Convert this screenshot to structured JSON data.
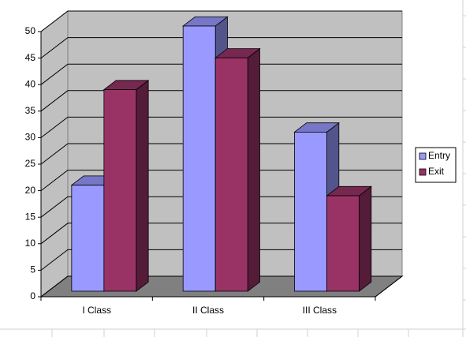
{
  "chart_data": {
    "type": "bar",
    "categories": [
      "I Class",
      "II Class",
      "III Class"
    ],
    "series": [
      {
        "name": "Entry",
        "color": "#9999ff",
        "values": [
          20,
          50,
          30
        ]
      },
      {
        "name": "Exit",
        "color": "#993366",
        "values": [
          38,
          44,
          18
        ]
      }
    ],
    "ylim": [
      0,
      50
    ],
    "yticks": [
      0,
      5,
      10,
      15,
      20,
      25,
      30,
      35,
      40,
      45,
      50
    ],
    "grid": true,
    "legend": "right"
  }
}
